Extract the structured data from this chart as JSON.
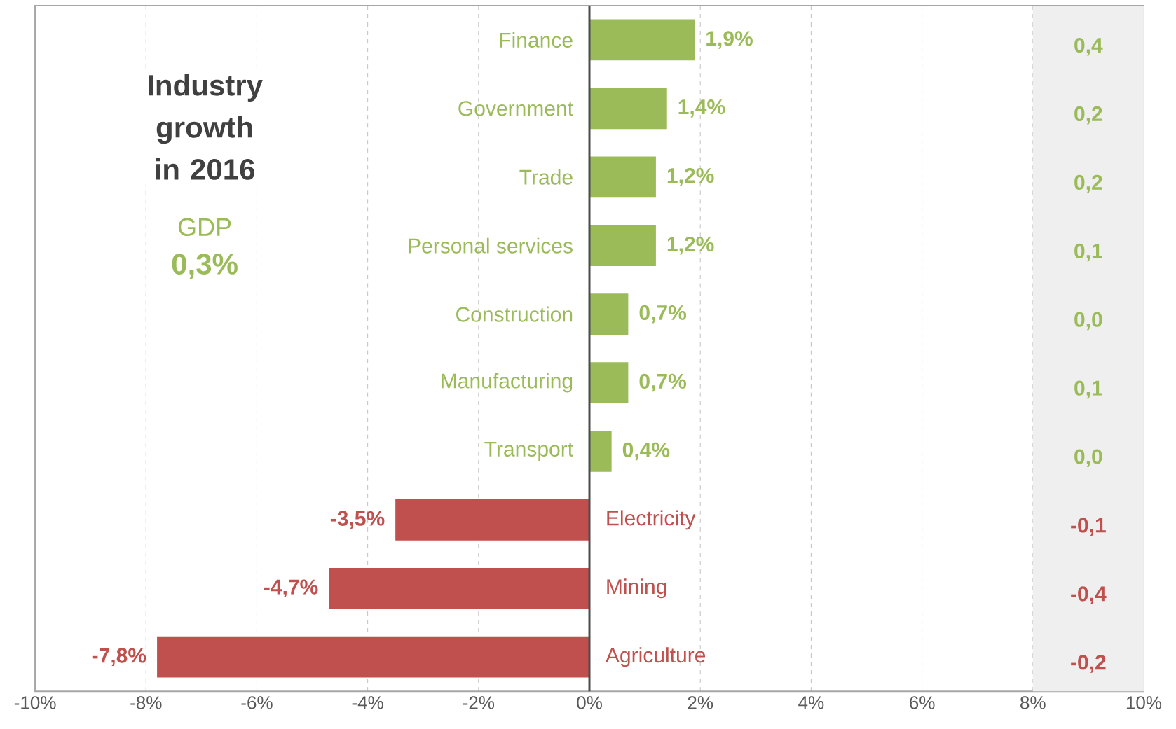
{
  "chart_data": {
    "type": "bar",
    "orientation": "horizontal",
    "title": "Industry growth in 2016",
    "categories": [
      "Finance",
      "Government",
      "Trade",
      "Personal  services",
      "Construction",
      "Manufacturing",
      "Transport",
      "Electricity",
      "Mining",
      "Agriculture"
    ],
    "values": [
      1.9,
      1.4,
      1.2,
      1.2,
      0.7,
      0.7,
      0.4,
      -3.5,
      -4.7,
      -7.8
    ],
    "colors": [
      "#9bbb59",
      "#9bbb59",
      "#9bbb59",
      "#9bbb59",
      "#9bbb59",
      "#9bbb59",
      "#9bbb59",
      "#c0504d",
      "#c0504d",
      "#c0504d"
    ],
    "value_labels": [
      "1,9%",
      "1,4%",
      "1,2%",
      "1,2%",
      "0,7%",
      "0,7%",
      "0,4%",
      "-3,5%",
      "-4,7%",
      "-7,8%"
    ],
    "xlim": [
      -10,
      10
    ],
    "xticks": [
      {
        "value": -10,
        "label": "-10%"
      },
      {
        "value": -8,
        "label": "-8%"
      },
      {
        "value": -6,
        "label": "-6%"
      },
      {
        "value": -4,
        "label": "-4%"
      },
      {
        "value": -2,
        "label": "-2%"
      },
      {
        "value": 0,
        "label": "0%"
      },
      {
        "value": 2,
        "label": "2%"
      },
      {
        "value": 4,
        "label": "4%"
      },
      {
        "value": 6,
        "label": "6%"
      },
      {
        "value": 8,
        "label": "8%"
      },
      {
        "value": 10,
        "label": "10%"
      }
    ],
    "grid": true,
    "bands": [
      {
        "axis": "x",
        "from": 8,
        "to": 10,
        "color": "#efefef"
      }
    ],
    "annotations": [
      "GDP",
      "0,3%",
      "0,4",
      "0,2",
      "0,2",
      "0,1",
      "0,0",
      "0,1",
      "0,0",
      "-0,1",
      "-0,4",
      "-0,2"
    ]
  }
}
